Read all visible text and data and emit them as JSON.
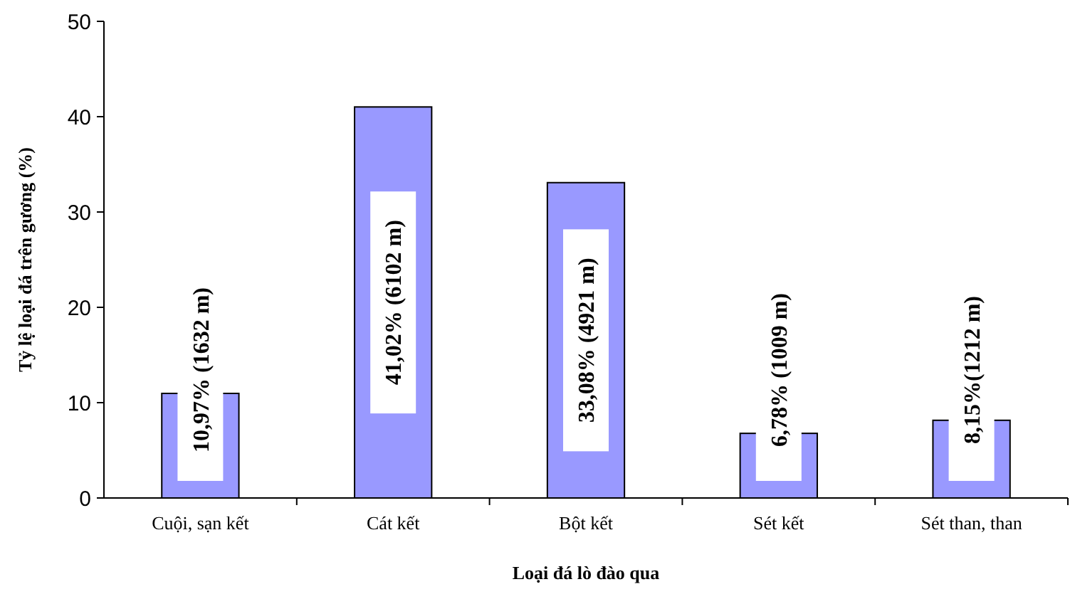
{
  "chart_data": {
    "type": "bar",
    "xlabel": "Loại đá lò đào qua",
    "ylabel": "Tỷ lệ loại đá trên gương (%)",
    "categories": [
      "Cuội,  sạn kết",
      "Cát kết",
      "Bột kết",
      "Sét kết",
      "Sét than, than"
    ],
    "values": [
      10.97,
      41.02,
      33.08,
      6.78,
      8.15
    ],
    "value_labels": [
      "10,97% (1632 m)",
      "41,02% (6102 m)",
      "33,08% (4921 m)",
      "6,78% (1009 m)",
      "8,15%(1212 m)"
    ],
    "color": "#9999ff",
    "ylim": [
      0,
      50
    ],
    "yticks": [
      0,
      10,
      20,
      30,
      40,
      50
    ]
  }
}
